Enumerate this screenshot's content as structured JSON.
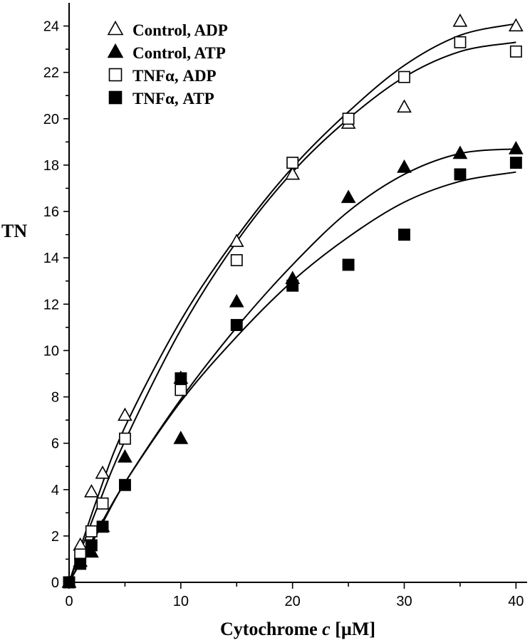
{
  "chart_data": {
    "type": "scatter",
    "xlabel_main": "Cytochrome ",
    "xlabel_italic": "c",
    "xlabel_unit": " [µM]",
    "ylabel": "TN",
    "xlim": [
      0,
      41
    ],
    "ylim": [
      0,
      25
    ],
    "x_ticks": [
      0,
      10,
      20,
      30,
      40
    ],
    "y_ticks": [
      0,
      2,
      4,
      6,
      8,
      10,
      12,
      14,
      16,
      18,
      20,
      22,
      24
    ],
    "grid": false,
    "legend_position": "top-left",
    "series": [
      {
        "name": "Control, ADP",
        "marker": "triangle-open",
        "points": [
          [
            0,
            0
          ],
          [
            1,
            1.6
          ],
          [
            2,
            3.9
          ],
          [
            3,
            4.7
          ],
          [
            5,
            7.2
          ],
          [
            10,
            8.8
          ],
          [
            15,
            14.7
          ],
          [
            20,
            17.6
          ],
          [
            25,
            19.8
          ],
          [
            30,
            20.5
          ],
          [
            35,
            24.2
          ],
          [
            40,
            24.0
          ]
        ],
        "fit": [
          [
            0,
            0
          ],
          [
            2.5,
            3.6
          ],
          [
            5,
            6.7
          ],
          [
            10,
            11.3
          ],
          [
            15,
            14.9
          ],
          [
            20,
            17.9
          ],
          [
            25,
            20.3
          ],
          [
            30,
            22.3
          ],
          [
            35,
            23.6
          ],
          [
            40,
            24.1
          ]
        ]
      },
      {
        "name": "Control, ATP",
        "marker": "triangle-filled",
        "points": [
          [
            0,
            0
          ],
          [
            1,
            0.9
          ],
          [
            2,
            1.3
          ],
          [
            3,
            2.4
          ],
          [
            5,
            5.4
          ],
          [
            10,
            6.2
          ],
          [
            15,
            12.1
          ],
          [
            20,
            13.1
          ],
          [
            25,
            16.6
          ],
          [
            30,
            17.9
          ],
          [
            35,
            18.5
          ],
          [
            40,
            18.7
          ]
        ],
        "fit": [
          [
            0,
            0
          ],
          [
            2.5,
            2.1
          ],
          [
            5,
            4.3
          ],
          [
            10,
            7.9
          ],
          [
            15,
            11.0
          ],
          [
            20,
            13.7
          ],
          [
            25,
            16.0
          ],
          [
            30,
            17.6
          ],
          [
            35,
            18.5
          ],
          [
            40,
            18.7
          ]
        ]
      },
      {
        "name": "TNFα, ADP",
        "marker": "square-open",
        "points": [
          [
            0,
            0
          ],
          [
            1,
            1.2
          ],
          [
            2,
            2.2
          ],
          [
            3,
            3.4
          ],
          [
            5,
            6.2
          ],
          [
            10,
            8.3
          ],
          [
            15,
            13.9
          ],
          [
            20,
            18.1
          ],
          [
            25,
            20.0
          ],
          [
            30,
            21.8
          ],
          [
            35,
            23.3
          ],
          [
            40,
            22.9
          ]
        ],
        "fit": [
          [
            0,
            0
          ],
          [
            2.5,
            3.2
          ],
          [
            5,
            6.1
          ],
          [
            10,
            10.9
          ],
          [
            15,
            14.7
          ],
          [
            20,
            17.7
          ],
          [
            25,
            20.0
          ],
          [
            30,
            21.8
          ],
          [
            35,
            22.9
          ],
          [
            40,
            23.3
          ]
        ]
      },
      {
        "name": "TNFα, ATP",
        "marker": "square-filled",
        "points": [
          [
            0,
            0
          ],
          [
            1,
            0.8
          ],
          [
            2,
            1.6
          ],
          [
            3,
            2.4
          ],
          [
            5,
            4.2
          ],
          [
            10,
            8.8
          ],
          [
            15,
            11.1
          ],
          [
            20,
            12.8
          ],
          [
            25,
            13.7
          ],
          [
            30,
            15.0
          ],
          [
            35,
            17.6
          ],
          [
            40,
            18.1
          ]
        ],
        "fit": [
          [
            0,
            0
          ],
          [
            2.5,
            2.2
          ],
          [
            5,
            4.3
          ],
          [
            10,
            7.8
          ],
          [
            15,
            10.6
          ],
          [
            20,
            13.0
          ],
          [
            25,
            14.9
          ],
          [
            30,
            16.4
          ],
          [
            35,
            17.3
          ],
          [
            40,
            17.7
          ]
        ]
      }
    ]
  }
}
